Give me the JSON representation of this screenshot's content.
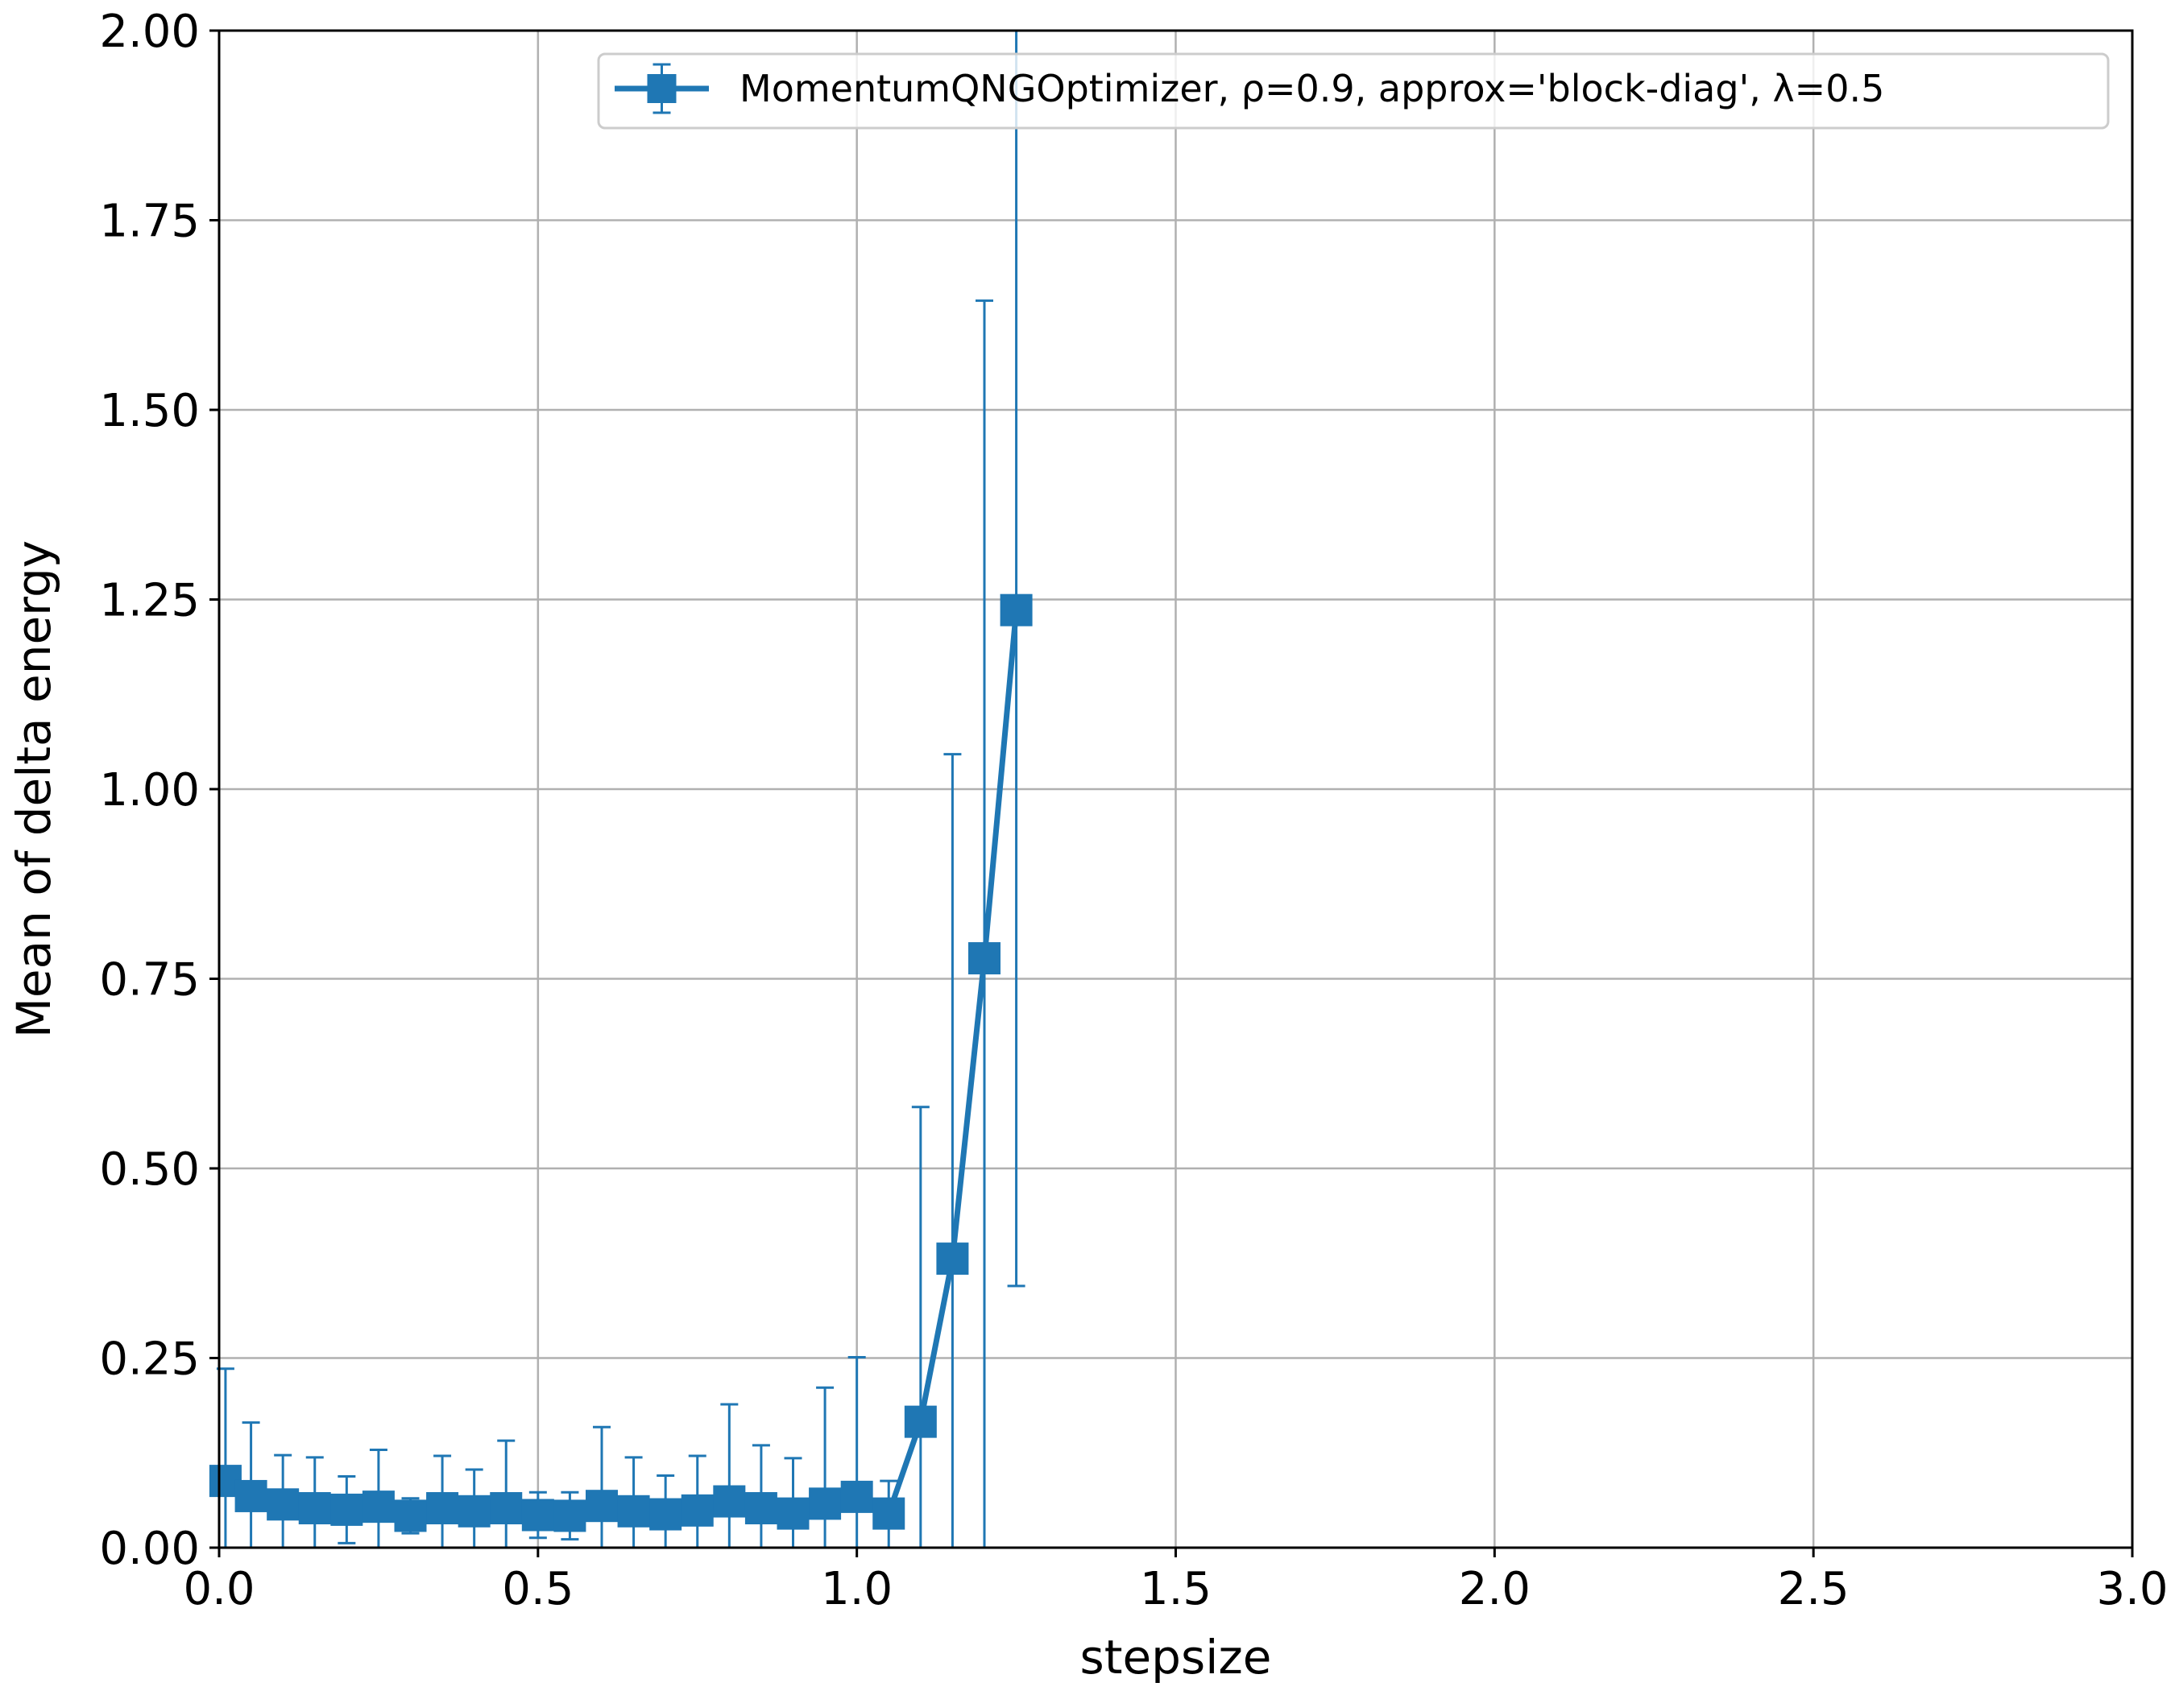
{
  "chart_data": {
    "type": "line",
    "title": "",
    "xlabel": "stepsize",
    "ylabel": "Mean of delta energy",
    "xlim": [
      0.0,
      3.0
    ],
    "ylim": [
      0.0,
      2.0
    ],
    "xticks": [
      "0.0",
      "0.5",
      "1.0",
      "1.5",
      "2.0",
      "2.5",
      "3.0"
    ],
    "yticks": [
      "0.00",
      "0.25",
      "0.50",
      "0.75",
      "1.00",
      "1.25",
      "1.50",
      "1.75",
      "2.00"
    ],
    "grid": true,
    "legend_position": "top-right",
    "series": [
      {
        "name": "MomentumQNGOptimizer, ρ=0.9, approx='block-diag', λ=0.5",
        "color": "#1f77b4",
        "marker": "square",
        "error_bars": true,
        "points": [
          {
            "x": 0.01,
            "y": 0.088,
            "lower": 0.0,
            "upper": 0.236
          },
          {
            "x": 0.05,
            "y": 0.068,
            "lower": 0.0,
            "upper": 0.165
          },
          {
            "x": 0.1,
            "y": 0.057,
            "lower": 0.0,
            "upper": 0.122
          },
          {
            "x": 0.15,
            "y": 0.052,
            "lower": 0.0,
            "upper": 0.119
          },
          {
            "x": 0.2,
            "y": 0.05,
            "lower": 0.006,
            "upper": 0.094
          },
          {
            "x": 0.25,
            "y": 0.054,
            "lower": 0.0,
            "upper": 0.129
          },
          {
            "x": 0.3,
            "y": 0.042,
            "lower": 0.019,
            "upper": 0.065
          },
          {
            "x": 0.35,
            "y": 0.052,
            "lower": 0.0,
            "upper": 0.121
          },
          {
            "x": 0.4,
            "y": 0.048,
            "lower": 0.0,
            "upper": 0.103
          },
          {
            "x": 0.45,
            "y": 0.052,
            "lower": 0.0,
            "upper": 0.141
          },
          {
            "x": 0.5,
            "y": 0.043,
            "lower": 0.013,
            "upper": 0.073
          },
          {
            "x": 0.55,
            "y": 0.042,
            "lower": 0.011,
            "upper": 0.073
          },
          {
            "x": 0.6,
            "y": 0.055,
            "lower": 0.0,
            "upper": 0.159
          },
          {
            "x": 0.65,
            "y": 0.048,
            "lower": 0.0,
            "upper": 0.119
          },
          {
            "x": 0.7,
            "y": 0.044,
            "lower": 0.0,
            "upper": 0.095
          },
          {
            "x": 0.75,
            "y": 0.049,
            "lower": 0.0,
            "upper": 0.121
          },
          {
            "x": 0.8,
            "y": 0.061,
            "lower": 0.0,
            "upper": 0.189
          },
          {
            "x": 0.85,
            "y": 0.052,
            "lower": 0.0,
            "upper": 0.135
          },
          {
            "x": 0.9,
            "y": 0.045,
            "lower": 0.0,
            "upper": 0.118
          },
          {
            "x": 0.95,
            "y": 0.058,
            "lower": 0.0,
            "upper": 0.211
          },
          {
            "x": 1.0,
            "y": 0.067,
            "lower": 0.0,
            "upper": 0.251
          },
          {
            "x": 1.05,
            "y": 0.045,
            "lower": 0.0,
            "upper": 0.088
          },
          {
            "x": 1.1,
            "y": 0.166,
            "lower": 0.0,
            "upper": 0.581
          },
          {
            "x": 1.15,
            "y": 0.381,
            "lower": 0.0,
            "upper": 1.046
          },
          {
            "x": 1.2,
            "y": 0.777,
            "lower": 0.0,
            "upper": 1.644
          },
          {
            "x": 1.25,
            "y": 1.236,
            "lower": 0.345,
            "upper": 2.2
          }
        ]
      }
    ]
  }
}
